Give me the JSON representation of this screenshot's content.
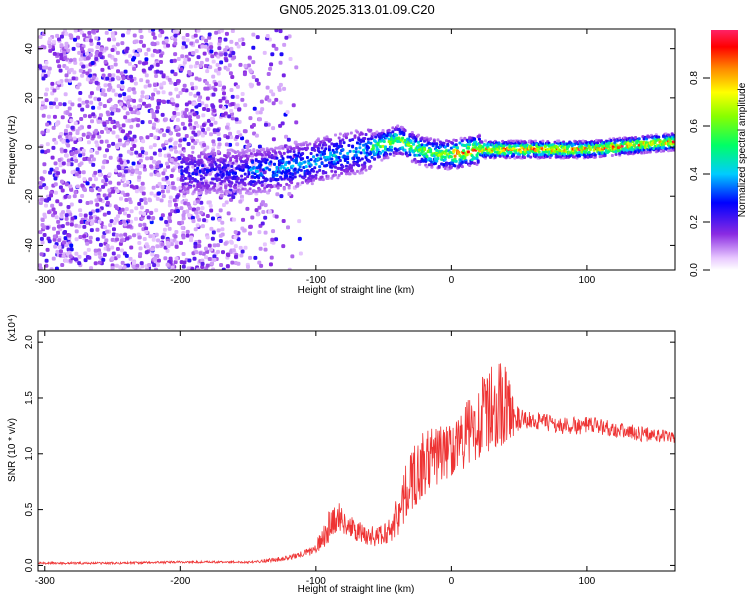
{
  "title": "GN05.2025.313.01.09.C20",
  "colorbar": {
    "label": "Normalized spectral amplitude",
    "ticks": [
      0.0,
      0.2,
      0.4,
      0.6,
      0.8
    ],
    "tick_labels": [
      "0.0",
      "0.2",
      "0.4",
      "0.6",
      "0.8"
    ],
    "range": [
      0,
      1
    ],
    "colormap": "rainbow (violet → blue → cyan → green → yellow → orange → red)"
  },
  "chart_data": [
    {
      "type": "heatmap",
      "xlabel": "Height of straight line (km)",
      "ylabel": "Frequency (Hz)",
      "xlim": [
        -305,
        165
      ],
      "ylim": [
        -50,
        48
      ],
      "x_ticks": [
        -300,
        -200,
        -100,
        0,
        100
      ],
      "x_tick_labels": [
        "-300",
        "-200",
        "-100",
        "0",
        "100"
      ],
      "y_ticks": [
        -40,
        -20,
        0,
        20,
        40
      ],
      "y_tick_labels": [
        "-40",
        "-20",
        "0",
        "20",
        "40"
      ],
      "ridge": {
        "x": [
          -150,
          -130,
          -110,
          -90,
          -70,
          -50,
          -40,
          -30,
          -20,
          -10,
          0,
          20,
          40,
          60,
          80,
          100,
          120,
          140,
          160,
          165
        ],
        "y": [
          -10,
          -9,
          -7,
          -4,
          -2,
          1,
          3,
          0,
          -2,
          -3,
          -3,
          -1,
          -1,
          -1,
          -1,
          -1,
          0,
          1,
          2,
          2
        ]
      }
    },
    {
      "type": "line",
      "xlabel": "Height of straight line (km)",
      "ylabel": "SNR (10 * v/v)",
      "y_multiplier": "(x10⁴)",
      "xlim": [
        -305,
        165
      ],
      "ylim": [
        -0.05,
        2.1
      ],
      "x_ticks": [
        -300,
        -200,
        -100,
        0,
        100
      ],
      "x_tick_labels": [
        "-300",
        "-200",
        "-100",
        "0",
        "100"
      ],
      "y_ticks": [
        0.0,
        0.5,
        1.0,
        1.5,
        2.0
      ],
      "y_tick_labels": [
        "0.0",
        "0.5",
        "1.0",
        "1.5",
        "2.0"
      ],
      "series": [
        {
          "color": "#ee3333",
          "x": [
            -305,
            -250,
            -200,
            -150,
            -130,
            -120,
            -110,
            -100,
            -95,
            -90,
            -85,
            -80,
            -75,
            -70,
            -65,
            -60,
            -55,
            -50,
            -45,
            -40,
            -35,
            -30,
            -25,
            -20,
            -15,
            -10,
            -5,
            0,
            5,
            10,
            15,
            20,
            25,
            30,
            35,
            40,
            45,
            50,
            60,
            70,
            80,
            90,
            100,
            110,
            120,
            130,
            140,
            150,
            160,
            165
          ],
          "y": [
            0.02,
            0.02,
            0.03,
            0.03,
            0.05,
            0.07,
            0.1,
            0.15,
            0.25,
            0.35,
            0.45,
            0.4,
            0.35,
            0.3,
            0.28,
            0.27,
            0.25,
            0.28,
            0.32,
            0.45,
            0.6,
            0.75,
            0.85,
            0.9,
            0.95,
            1.0,
            1.0,
            1.05,
            1.1,
            1.15,
            1.2,
            1.3,
            1.35,
            1.4,
            1.45,
            1.45,
            1.35,
            1.3,
            1.3,
            1.28,
            1.25,
            1.25,
            1.25,
            1.25,
            1.22,
            1.2,
            1.18,
            1.17,
            1.15,
            1.15
          ],
          "spread": [
            0.01,
            0.01,
            0.01,
            0.01,
            0.02,
            0.02,
            0.03,
            0.05,
            0.1,
            0.15,
            0.15,
            0.12,
            0.1,
            0.1,
            0.1,
            0.1,
            0.1,
            0.1,
            0.12,
            0.2,
            0.25,
            0.3,
            0.3,
            0.3,
            0.3,
            0.28,
            0.25,
            0.25,
            0.25,
            0.3,
            0.35,
            0.35,
            0.4,
            0.4,
            0.4,
            0.35,
            0.2,
            0.1,
            0.08,
            0.08,
            0.08,
            0.08,
            0.08,
            0.08,
            0.07,
            0.07,
            0.07,
            0.06,
            0.06,
            0.06
          ]
        }
      ]
    }
  ]
}
